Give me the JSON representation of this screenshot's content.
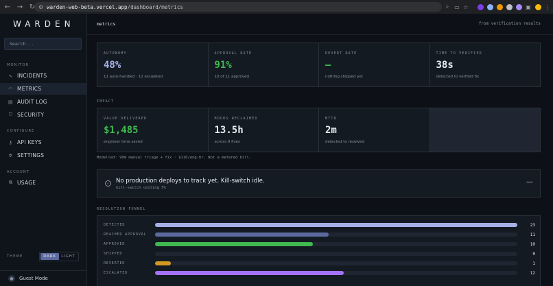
{
  "browser": {
    "url_host": "warden-web-beta.vercel.app",
    "url_path": "/dashboard/metrics"
  },
  "sidebar": {
    "logo": "WARDEN",
    "search_placeholder": "Search...",
    "sections": [
      {
        "label": "MONITOR",
        "items": [
          {
            "label": "INCIDENTS",
            "icon": "pulse-icon"
          },
          {
            "label": "METRICS",
            "icon": "gauge-icon",
            "active": true
          },
          {
            "label": "AUDIT LOG",
            "icon": "document-icon"
          },
          {
            "label": "SECURITY",
            "icon": "shield-icon"
          }
        ]
      },
      {
        "label": "CONFIGURE",
        "items": [
          {
            "label": "API KEYS",
            "icon": "key-icon"
          },
          {
            "label": "SETTINGS",
            "icon": "gear-icon"
          }
        ]
      },
      {
        "label": "ACCOUNT",
        "items": [
          {
            "label": "USAGE",
            "icon": "layers-icon"
          }
        ]
      }
    ],
    "theme": {
      "label": "THEME",
      "dark": "DARK",
      "light": "LIGHT",
      "selected": "DARK"
    },
    "guest": "Guest Mode"
  },
  "header": {
    "title": "metrics",
    "note": "from verification results"
  },
  "stats": [
    {
      "label": "AUTONOMY",
      "value": "48%",
      "sub": "11 auto-handled · 12 escalated",
      "color": "#a5b1e6"
    },
    {
      "label": "APPROVAL RATE",
      "value": "91%",
      "sub": "10 of 11 approved",
      "color": "#3fb950"
    },
    {
      "label": "REVERT RATE",
      "value": "—",
      "sub": "nothing shipped yet",
      "color": "#3fb950"
    },
    {
      "label": "TIME TO VERIFIED",
      "value": "38s",
      "sub": "detected to verified fix",
      "color": "#e6edf3"
    }
  ],
  "impact": {
    "label": "IMPACT",
    "cards": [
      {
        "label": "VALUE DELIVERED",
        "value": "$1,485",
        "sub": "engineer time saved",
        "color": "#3fb950"
      },
      {
        "label": "HOURS RECLAIMED",
        "value": "13.5h",
        "sub": "across 9 fixes",
        "color": "#e6edf3"
      },
      {
        "label": "MTTR",
        "value": "2m",
        "sub": "detected to resolved",
        "color": "#e6edf3"
      }
    ],
    "footnote": "Modelled: 90m manual triage + fix · $110/eng-hr. Not a metered bill."
  },
  "banner": {
    "title": "No production deploys to track yet. Kill-switch idle.",
    "sub": "kill-switch ceiling 5%"
  },
  "funnel": {
    "label": "RESOLUTION FUNNEL",
    "max": 23,
    "rows": [
      {
        "name": "DETECTED",
        "count": 23,
        "color": "#a5b1e6"
      },
      {
        "name": "REACHED APPROVAL",
        "count": 11,
        "color": "#5c6aa0"
      },
      {
        "name": "APPROVED",
        "count": 10,
        "color": "#3fb950"
      },
      {
        "name": "SHIPPED",
        "count": 0,
        "color": "#3fb950"
      },
      {
        "name": "REVERTED",
        "count": 1,
        "color": "#d29922"
      },
      {
        "name": "ESCALATED",
        "count": 12,
        "color": "#a371f7"
      }
    ]
  }
}
